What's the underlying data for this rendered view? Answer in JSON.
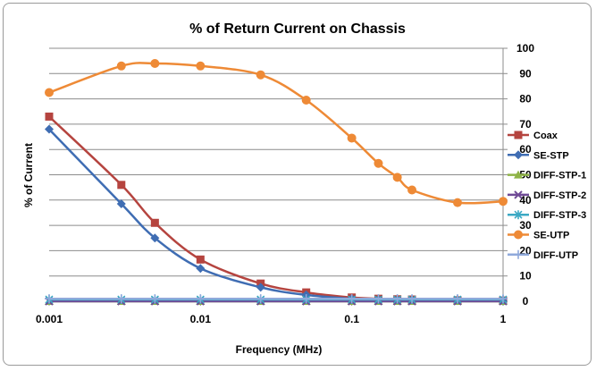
{
  "chart_data": {
    "type": "line",
    "title": "% of Return Current on Chassis",
    "xlabel": "Frequency (MHz)",
    "ylabel": "% of Current",
    "xscale": "log",
    "xlim": [
      0.001,
      1
    ],
    "ylim": [
      0,
      100
    ],
    "x_ticks": [
      0.001,
      0.01,
      0.1,
      1
    ],
    "x_tick_labels": [
      "0.001",
      "0.01",
      "0.1",
      "1"
    ],
    "y_ticks": [
      0,
      10,
      20,
      30,
      40,
      50,
      60,
      70,
      80,
      90,
      100
    ],
    "y_tick_labels": [
      "0",
      "10",
      "20",
      "30",
      "40",
      "50",
      "60",
      "70",
      "80",
      "90",
      "100"
    ],
    "y_axis_side": "right",
    "grid": "horizontal",
    "legend_position": "right",
    "series": [
      {
        "name": "Coax",
        "color": "#b5443f",
        "marker": "square",
        "x": [
          0.001,
          0.003,
          0.005,
          0.01,
          0.025,
          0.05,
          0.1,
          0.15,
          0.2,
          0.25,
          0.5,
          1
        ],
        "y": [
          73,
          46,
          31,
          16.5,
          7,
          3.5,
          1.5,
          1,
          0.8,
          0.7,
          0.4,
          0.3
        ]
      },
      {
        "name": "SE-STP",
        "color": "#3f6db3",
        "marker": "diamond",
        "x": [
          0.001,
          0.003,
          0.005,
          0.01,
          0.025,
          0.05,
          0.1,
          0.15,
          0.2,
          0.25,
          0.5,
          1
        ],
        "y": [
          68,
          38.5,
          25,
          13,
          5.5,
          2.5,
          1,
          0.6,
          0.5,
          0.4,
          0.2,
          0.1
        ]
      },
      {
        "name": "DIFF-STP-1",
        "color": "#8eb346",
        "marker": "triangle",
        "x": [
          0.001,
          0.003,
          0.005,
          0.01,
          0.025,
          0.05,
          0.1,
          0.15,
          0.2,
          0.25,
          0.5,
          1
        ],
        "y": [
          0,
          0,
          0,
          0,
          0,
          0,
          0,
          0,
          0,
          0,
          0,
          0
        ]
      },
      {
        "name": "DIFF-STP-2",
        "color": "#6f4a96",
        "marker": "x",
        "x": [
          0.001,
          0.003,
          0.005,
          0.01,
          0.025,
          0.05,
          0.1,
          0.15,
          0.2,
          0.25,
          0.5,
          1
        ],
        "y": [
          0,
          0,
          0,
          0,
          0,
          0,
          0,
          0,
          0,
          0,
          0,
          0
        ]
      },
      {
        "name": "DIFF-STP-3",
        "color": "#3ba9c4",
        "marker": "star",
        "x": [
          0.001,
          0.003,
          0.005,
          0.01,
          0.025,
          0.05,
          0.1,
          0.15,
          0.2,
          0.25,
          0.5,
          1
        ],
        "y": [
          0.7,
          0.7,
          0.7,
          0.7,
          0.7,
          0.7,
          0.7,
          0.7,
          0.7,
          0.7,
          0.7,
          0.7
        ]
      },
      {
        "name": "SE-UTP",
        "color": "#ee8a36",
        "marker": "circle",
        "x": [
          0.001,
          0.003,
          0.005,
          0.01,
          0.025,
          0.05,
          0.1,
          0.15,
          0.2,
          0.25,
          0.5,
          1
        ],
        "y": [
          82.5,
          93,
          94,
          93,
          89.5,
          79.5,
          64.5,
          54.5,
          49,
          44,
          39,
          39.5
        ]
      },
      {
        "name": "DIFF-UTP",
        "color": "#8fa9db",
        "marker": "plus",
        "x": [
          0.001,
          0.003,
          0.005,
          0.01,
          0.025,
          0.05,
          0.1,
          0.15,
          0.2,
          0.25,
          0.5,
          1
        ],
        "y": [
          1,
          1,
          1,
          1,
          1,
          1,
          1,
          1,
          1,
          1,
          1,
          1
        ]
      }
    ]
  }
}
